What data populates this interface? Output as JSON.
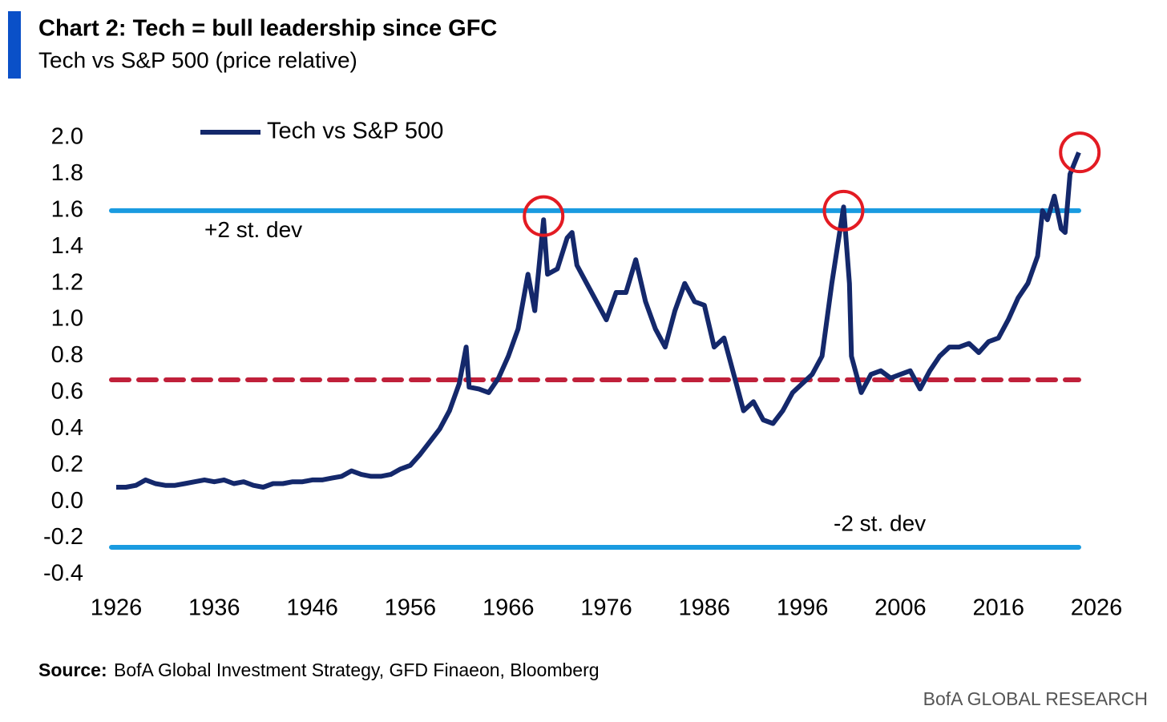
{
  "chart_data": {
    "type": "line",
    "title": "Chart 2: Tech = bull leadership since GFC",
    "subtitle": "Tech vs S&P 500 (price relative)",
    "source_label": "Source:",
    "source": "BofA Global Investment Strategy, GFD Finaeon, Bloomberg",
    "footer": "BofA GLOBAL RESEARCH",
    "legend": "top-left",
    "xlim": [
      1926,
      2026
    ],
    "xticks": [
      1926,
      1936,
      1946,
      1956,
      1966,
      1976,
      1986,
      1996,
      2006,
      2016,
      2026
    ],
    "ylim": [
      -0.4,
      2.0
    ],
    "yticks": [
      {
        "value": 2,
        "label": "2.0"
      },
      1.8,
      1.6,
      1.4,
      1.2,
      {
        "value": 1,
        "label": "1.0"
      },
      0.8,
      0.6,
      0.4,
      0.2,
      {
        "value": 0,
        "label": "0.0"
      },
      -0.2,
      -0.4
    ],
    "x": [
      1926,
      1927,
      1928,
      1929,
      1930,
      1931,
      1932,
      1933,
      1934,
      1935,
      1936,
      1937,
      1938,
      1939,
      1940,
      1941,
      1942,
      1943,
      1944,
      1945,
      1946,
      1947,
      1948,
      1949,
      1950,
      1951,
      1952,
      1953,
      1954,
      1955,
      1956,
      1957,
      1958,
      1959,
      1960,
      1961,
      1961.7,
      1962,
      1963,
      1964,
      1965,
      1966,
      1967,
      1968,
      1968.7,
      1969.6,
      1970,
      1971,
      1972,
      1972.5,
      1973,
      1974,
      1975,
      1976,
      1977,
      1978,
      1979,
      1980,
      1981,
      1982,
      1983,
      1984,
      1985,
      1986,
      1987,
      1988,
      1989,
      1990,
      1991,
      1992,
      1993,
      1994,
      1995,
      1996,
      1997,
      1998,
      1999,
      2000.2,
      2000.8,
      2001,
      2002,
      2003,
      2004,
      2005,
      2006,
      2007,
      2008,
      2009,
      2010,
      2011,
      2012,
      2013,
      2014,
      2015,
      2016,
      2017,
      2018,
      2019,
      2020,
      2020.5,
      2021,
      2021.7,
      2022.4,
      2022.8,
      2023.3,
      2024.2
    ],
    "series": [
      {
        "name": "Tech vs S&P 500",
        "color": "#14286b",
        "values": [
          0.08,
          0.08,
          0.09,
          0.12,
          0.1,
          0.09,
          0.09,
          0.1,
          0.11,
          0.12,
          0.11,
          0.12,
          0.1,
          0.11,
          0.09,
          0.08,
          0.1,
          0.1,
          0.11,
          0.11,
          0.12,
          0.12,
          0.13,
          0.14,
          0.17,
          0.15,
          0.14,
          0.14,
          0.15,
          0.18,
          0.2,
          0.26,
          0.33,
          0.4,
          0.5,
          0.65,
          0.85,
          0.63,
          0.62,
          0.6,
          0.68,
          0.8,
          0.95,
          1.25,
          1.05,
          1.55,
          1.25,
          1.28,
          1.45,
          1.48,
          1.3,
          1.2,
          1.1,
          1.0,
          1.15,
          1.15,
          1.33,
          1.1,
          0.95,
          0.85,
          1.05,
          1.2,
          1.1,
          1.08,
          0.85,
          0.9,
          0.7,
          0.5,
          0.55,
          0.45,
          0.43,
          0.5,
          0.6,
          0.65,
          0.7,
          0.8,
          1.2,
          1.62,
          1.2,
          0.8,
          0.6,
          0.7,
          0.72,
          0.68,
          0.7,
          0.72,
          0.62,
          0.72,
          0.8,
          0.85,
          0.85,
          0.87,
          0.82,
          0.88,
          0.9,
          1.0,
          1.12,
          1.2,
          1.35,
          1.6,
          1.55,
          1.68,
          1.5,
          1.48,
          1.8,
          1.92
        ]
      }
    ],
    "reference_lines": [
      {
        "value": 1.6,
        "label": "+2 st. dev",
        "color": "#1a9be0",
        "style": "solid"
      },
      {
        "value": 0.67,
        "color": "#c0203a",
        "style": "dashed"
      },
      {
        "value": -0.25,
        "label": "-2 st. dev",
        "color": "#1a9be0",
        "style": "solid"
      }
    ],
    "circled_points": [
      {
        "x": 1969.6,
        "y": 1.57,
        "color": "#e31b23"
      },
      {
        "x": 2000.2,
        "y": 1.6,
        "color": "#e31b23"
      },
      {
        "x": 2024.3,
        "y": 1.92,
        "color": "#e31b23"
      }
    ]
  }
}
